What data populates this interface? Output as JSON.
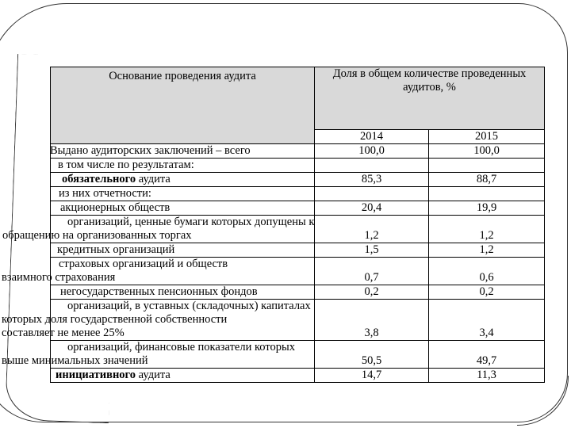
{
  "table": {
    "header": {
      "col1": "Основание проведения аудита",
      "col2": "Доля в общем количестве проведенных аудитов, %",
      "years": [
        "2014",
        "2015"
      ]
    },
    "rows": [
      {
        "lines": [
          {
            "t": "Выдано аудиторских заключений – всего",
            "i": 61
          }
        ],
        "v": [
          "100,0",
          "100,0"
        ]
      },
      {
        "lines": [
          {
            "t": "в том числе по результатам:",
            "i": 71
          }
        ],
        "v": [
          "",
          ""
        ]
      },
      {
        "lines": [
          {
            "b": "обязательного",
            "t": " аудита",
            "i": 76
          }
        ],
        "v": [
          "85,3",
          "88,7"
        ]
      },
      {
        "lines": [
          {
            "t": "из них отчетности:",
            "i": 72
          }
        ],
        "v": [
          "",
          ""
        ]
      },
      {
        "lines": [
          {
            "t": "акционерных обществ",
            "i": 74
          }
        ],
        "v": [
          "20,4",
          "19,9"
        ]
      },
      {
        "lines": [
          {
            "t": "организаций, ценные бумаги которых допущены к",
            "i": 83
          },
          {
            "t": "обращению на организованных торгах",
            "i": 1
          }
        ],
        "v": [
          "1,2",
          "1,2"
        ]
      },
      {
        "lines": [
          {
            "t": "кредитных организаций",
            "i": 70
          }
        ],
        "v": [
          "1,5",
          "1,2"
        ]
      },
      {
        "lines": [
          {
            "t": "страховых организаций и обществ",
            "i": 72
          },
          {
            "t": "взаимного страхования",
            "i": 0
          }
        ],
        "v": [
          "0,7",
          "0,6"
        ]
      },
      {
        "lines": [
          {
            "t": "негосударственных пенсионных фондов",
            "i": 74
          }
        ],
        "v": [
          "0,2",
          "0,2"
        ]
      },
      {
        "lines": [
          {
            "t": "организаций, в уставных (складочных) капиталах",
            "i": 83
          },
          {
            "t": "которых доля государственной собственности",
            "i": 0
          },
          {
            "t": "составляет не менее 25%",
            "i": 0
          }
        ],
        "v": [
          "3,8",
          "3,4"
        ]
      },
      {
        "lines": [
          {
            "t": "организаций, финансовые показатели которых",
            "i": 83
          },
          {
            "t": "выше минимальных значений",
            "i": 0
          }
        ],
        "v": [
          "50,5",
          "49,7"
        ]
      },
      {
        "lines": [
          {
            "b": "инициативного",
            "t": " аудита",
            "i": 68
          }
        ],
        "v": [
          "14,7",
          "11,3"
        ]
      }
    ]
  },
  "colors": {
    "header_bg": "#d9d9d9",
    "table_border": "#000000",
    "frame": "#333333",
    "text": "#000000"
  }
}
